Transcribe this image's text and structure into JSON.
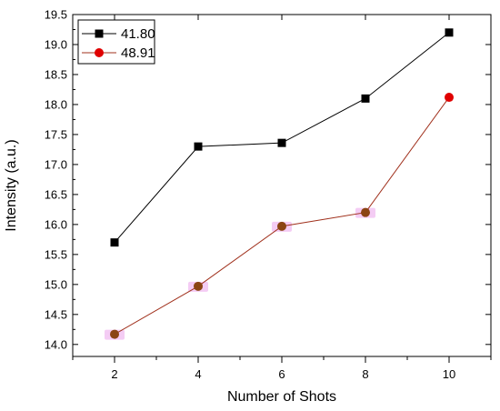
{
  "chart_data": {
    "type": "line",
    "xlabel": "Number of Shots",
    "ylabel": "Intensity (a.u.)",
    "x": [
      2,
      4,
      6,
      8,
      10
    ],
    "xlim": [
      1,
      11
    ],
    "ylim": [
      13.8,
      19.5
    ],
    "xticks": [
      "2",
      "4",
      "6",
      "8",
      "10"
    ],
    "yticks": [
      "14.0",
      "14.5",
      "15.0",
      "15.5",
      "16.0",
      "16.5",
      "17.0",
      "17.5",
      "18.0",
      "18.5",
      "19.0",
      "19.5"
    ],
    "legend_position": "top-left",
    "grid": false,
    "series": [
      {
        "name": "41.80",
        "values": [
          15.7,
          17.3,
          17.36,
          18.1,
          19.2
        ],
        "color": "#000000",
        "marker": "square"
      },
      {
        "name": "48.91",
        "values": [
          14.17,
          14.97,
          15.97,
          16.2,
          18.12
        ],
        "color": "#e00000",
        "line_color": "#a0301c",
        "marker": "circle",
        "marker_colors": [
          "#8b4513",
          "#8b4513",
          "#8b4513",
          "#8b4513",
          "#e00000"
        ],
        "highlight_color": "#f3c6f3"
      }
    ]
  }
}
